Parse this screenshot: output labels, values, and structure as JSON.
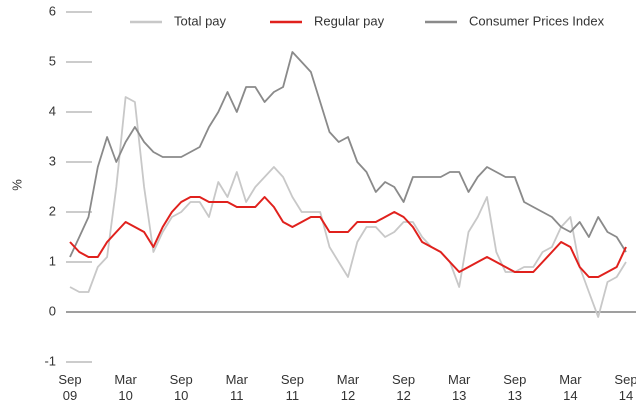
{
  "chart_data": {
    "type": "line",
    "y_label": "%",
    "categories": [
      "Sep 09",
      null,
      null,
      null,
      null,
      null,
      "Mar 10",
      null,
      null,
      null,
      null,
      null,
      "Sep 10",
      null,
      null,
      null,
      null,
      null,
      "Mar 11",
      null,
      null,
      null,
      null,
      null,
      "Sep 11",
      null,
      null,
      null,
      null,
      null,
      "Mar 12",
      null,
      null,
      null,
      null,
      null,
      "Sep 12",
      null,
      null,
      null,
      null,
      null,
      "Mar 13",
      null,
      null,
      null,
      null,
      null,
      "Sep 13",
      null,
      null,
      null,
      null,
      null,
      "Mar 14",
      null,
      null,
      null,
      null,
      null,
      "Sep 14"
    ],
    "series": [
      {
        "name": "Total pay",
        "color": "#c8c8c8",
        "values": [
          0.5,
          0.4,
          0.4,
          0.9,
          1.1,
          2.5,
          4.3,
          4.2,
          2.5,
          1.2,
          1.6,
          1.9,
          2.0,
          2.2,
          2.2,
          1.9,
          2.6,
          2.3,
          2.8,
          2.2,
          2.5,
          2.7,
          2.9,
          2.7,
          2.3,
          2.0,
          2.0,
          2.0,
          1.3,
          1.0,
          0.7,
          1.4,
          1.7,
          1.7,
          1.5,
          1.6,
          1.8,
          1.8,
          1.5,
          1.3,
          1.2,
          1.0,
          0.5,
          1.6,
          1.9,
          2.3,
          1.2,
          0.8,
          0.8,
          0.9,
          0.9,
          1.2,
          1.3,
          1.7,
          1.9,
          0.9,
          0.4,
          -0.1,
          0.6,
          0.7,
          1.0
        ]
      },
      {
        "name": "Regular pay",
        "color": "#e0211d",
        "values": [
          1.4,
          1.2,
          1.1,
          1.1,
          1.4,
          1.6,
          1.8,
          1.7,
          1.6,
          1.3,
          1.7,
          2.0,
          2.2,
          2.3,
          2.3,
          2.2,
          2.2,
          2.2,
          2.1,
          2.1,
          2.1,
          2.3,
          2.1,
          1.8,
          1.7,
          1.8,
          1.9,
          1.9,
          1.6,
          1.6,
          1.6,
          1.8,
          1.8,
          1.8,
          1.9,
          2.0,
          1.9,
          1.7,
          1.4,
          1.3,
          1.2,
          1.0,
          0.8,
          0.9,
          1.0,
          1.1,
          1.0,
          0.9,
          0.8,
          0.8,
          0.8,
          1.0,
          1.2,
          1.4,
          1.3,
          0.9,
          0.7,
          0.7,
          0.8,
          0.9,
          1.3
        ]
      },
      {
        "name": "Consumer Prices Index",
        "color": "#8a8a8a",
        "values": [
          1.1,
          1.5,
          1.9,
          2.9,
          3.5,
          3.0,
          3.4,
          3.7,
          3.4,
          3.2,
          3.1,
          3.1,
          3.1,
          3.2,
          3.3,
          3.7,
          4.0,
          4.4,
          4.0,
          4.5,
          4.5,
          4.2,
          4.4,
          4.5,
          5.2,
          5.0,
          4.8,
          4.2,
          3.6,
          3.4,
          3.5,
          3.0,
          2.8,
          2.4,
          2.6,
          2.5,
          2.2,
          2.7,
          2.7,
          2.7,
          2.7,
          2.8,
          2.8,
          2.4,
          2.7,
          2.9,
          2.8,
          2.7,
          2.7,
          2.2,
          2.1,
          2.0,
          1.9,
          1.7,
          1.6,
          1.8,
          1.5,
          1.9,
          1.6,
          1.5,
          1.2
        ]
      }
    ],
    "ylim": [
      -1,
      6
    ],
    "yticks": [
      -1,
      0,
      1,
      2,
      3,
      4,
      5,
      6
    ],
    "legend": "top"
  }
}
